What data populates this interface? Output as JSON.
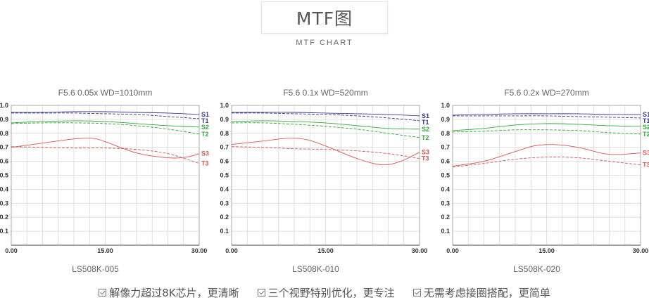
{
  "header": {
    "title": "MTF图",
    "subtitle": "MTF CHART"
  },
  "chart_data": [
    {
      "type": "line",
      "title": "F5.6  0.05x  WD=1010mm",
      "caption": "LS508K-005",
      "xlim": [
        0,
        30
      ],
      "ylim": [
        0,
        1.0
      ],
      "x_ticks": [
        "0.00",
        "15.00",
        "30.00"
      ],
      "y_ticks": [
        "0.1",
        "0.2",
        "0.3",
        "0.4",
        "0.5",
        "0.6",
        "0.7",
        "0.8",
        "0.9",
        "1.0"
      ],
      "grid": true,
      "series": [
        {
          "name": "S1",
          "color": "#3a3a8c",
          "dashed": false,
          "x": [
            0,
            5,
            10,
            15,
            20,
            25,
            30
          ],
          "y": [
            0.95,
            0.95,
            0.955,
            0.955,
            0.95,
            0.945,
            0.935
          ]
        },
        {
          "name": "T1",
          "color": "#3a3a8c",
          "dashed": true,
          "x": [
            0,
            5,
            10,
            15,
            20,
            25,
            30
          ],
          "y": [
            0.945,
            0.945,
            0.945,
            0.94,
            0.935,
            0.92,
            0.905
          ]
        },
        {
          "name": "S2",
          "color": "#2ea836",
          "dashed": false,
          "x": [
            0,
            5,
            10,
            15,
            20,
            25,
            30
          ],
          "y": [
            0.875,
            0.885,
            0.89,
            0.885,
            0.87,
            0.855,
            0.845
          ]
        },
        {
          "name": "T2",
          "color": "#2ea836",
          "dashed": true,
          "x": [
            0,
            5,
            10,
            15,
            20,
            25,
            30
          ],
          "y": [
            0.87,
            0.875,
            0.875,
            0.87,
            0.855,
            0.83,
            0.795
          ]
        },
        {
          "name": "S3",
          "color": "#d9534f",
          "dashed": false,
          "x": [
            0,
            5,
            10,
            13,
            15,
            20,
            25,
            28,
            30
          ],
          "y": [
            0.7,
            0.73,
            0.76,
            0.765,
            0.74,
            0.66,
            0.625,
            0.63,
            0.655
          ]
        },
        {
          "name": "T3",
          "color": "#d9534f",
          "dashed": true,
          "x": [
            0,
            5,
            10,
            15,
            20,
            25,
            30
          ],
          "y": [
            0.705,
            0.7,
            0.695,
            0.695,
            0.685,
            0.655,
            0.585
          ]
        }
      ]
    },
    {
      "type": "line",
      "title": "F5.6  0.1x  WD=520mm",
      "caption": "LS508K-010",
      "xlim": [
        0,
        30
      ],
      "ylim": [
        0,
        1.0
      ],
      "x_ticks": [
        "0.00",
        "15.00",
        "30.00"
      ],
      "y_ticks": [
        "0.1",
        "0.2",
        "0.3",
        "0.4",
        "0.5",
        "0.6",
        "0.7",
        "0.8",
        "0.9",
        "1.0"
      ],
      "grid": true,
      "series": [
        {
          "name": "S1",
          "color": "#3a3a8c",
          "dashed": false,
          "x": [
            0,
            5,
            10,
            15,
            20,
            25,
            30
          ],
          "y": [
            0.95,
            0.95,
            0.95,
            0.945,
            0.94,
            0.935,
            0.925
          ]
        },
        {
          "name": "T1",
          "color": "#3a3a8c",
          "dashed": true,
          "x": [
            0,
            5,
            10,
            15,
            20,
            25,
            30
          ],
          "y": [
            0.945,
            0.945,
            0.94,
            0.935,
            0.925,
            0.91,
            0.89
          ]
        },
        {
          "name": "S2",
          "color": "#2ea836",
          "dashed": false,
          "x": [
            0,
            5,
            10,
            15,
            20,
            25,
            30
          ],
          "y": [
            0.885,
            0.89,
            0.885,
            0.875,
            0.855,
            0.835,
            0.83
          ]
        },
        {
          "name": "T2",
          "color": "#2ea836",
          "dashed": true,
          "x": [
            0,
            5,
            10,
            15,
            20,
            25,
            30
          ],
          "y": [
            0.875,
            0.875,
            0.865,
            0.85,
            0.83,
            0.8,
            0.77
          ]
        },
        {
          "name": "S3",
          "color": "#d9534f",
          "dashed": false,
          "x": [
            0,
            5,
            9,
            12,
            15,
            20,
            24,
            27,
            30
          ],
          "y": [
            0.72,
            0.745,
            0.765,
            0.755,
            0.71,
            0.62,
            0.575,
            0.6,
            0.665
          ]
        },
        {
          "name": "T3",
          "color": "#d9534f",
          "dashed": true,
          "x": [
            0,
            5,
            10,
            15,
            20,
            25,
            30
          ],
          "y": [
            0.705,
            0.7,
            0.69,
            0.685,
            0.675,
            0.655,
            0.62
          ]
        }
      ]
    },
    {
      "type": "line",
      "title": "F5.6  0.2x  WD=270mm",
      "caption": "LS508K-020",
      "xlim": [
        0,
        30
      ],
      "ylim": [
        0,
        1.0
      ],
      "x_ticks": [
        "0.00",
        "15.00",
        "30.00"
      ],
      "y_ticks": [
        "0.1",
        "0.2",
        "0.3",
        "0.4",
        "0.5",
        "0.6",
        "0.7",
        "0.8",
        "0.9",
        "1.0"
      ],
      "grid": true,
      "series": [
        {
          "name": "S1",
          "color": "#3a3a8c",
          "dashed": false,
          "x": [
            0,
            5,
            10,
            15,
            20,
            25,
            30
          ],
          "y": [
            0.93,
            0.935,
            0.94,
            0.94,
            0.94,
            0.935,
            0.935
          ]
        },
        {
          "name": "T1",
          "color": "#3a3a8c",
          "dashed": true,
          "x": [
            0,
            5,
            10,
            15,
            20,
            25,
            30
          ],
          "y": [
            0.925,
            0.925,
            0.925,
            0.925,
            0.92,
            0.915,
            0.91
          ]
        },
        {
          "name": "S2",
          "color": "#2ea836",
          "dashed": false,
          "x": [
            0,
            5,
            10,
            15,
            20,
            25,
            30
          ],
          "y": [
            0.82,
            0.835,
            0.86,
            0.87,
            0.865,
            0.855,
            0.85
          ]
        },
        {
          "name": "T2",
          "color": "#2ea836",
          "dashed": true,
          "x": [
            0,
            5,
            10,
            15,
            20,
            25,
            30
          ],
          "y": [
            0.81,
            0.815,
            0.825,
            0.825,
            0.82,
            0.805,
            0.795
          ]
        },
        {
          "name": "S3",
          "color": "#d9534f",
          "dashed": false,
          "x": [
            0,
            5,
            10,
            13,
            16,
            20,
            25,
            30
          ],
          "y": [
            0.565,
            0.6,
            0.67,
            0.71,
            0.72,
            0.7,
            0.65,
            0.66
          ]
        },
        {
          "name": "T3",
          "color": "#d9534f",
          "dashed": true,
          "x": [
            0,
            5,
            10,
            15,
            20,
            25,
            30
          ],
          "y": [
            0.56,
            0.585,
            0.615,
            0.63,
            0.625,
            0.6,
            0.575
          ]
        }
      ]
    }
  ],
  "features": [
    "解像力超过8K芯片，更清晰",
    "三个视野特别优化，更专注",
    "无需考虑接圈搭配，更简单"
  ]
}
